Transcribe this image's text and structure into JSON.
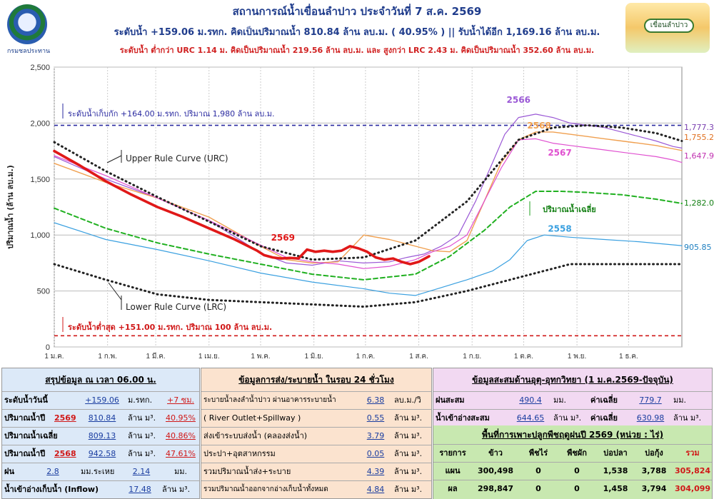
{
  "header": {
    "title": "สถานการณ์น้ำเขื่อนลำปาว ประจำวันที่ 7 ส.ค. 2569",
    "line2": "ระดับน้ำ +159.06 ม.รทก. คิดเป็นปริมาณน้ำ 810.84 ล้าน ลบ.ม. ( 40.95% ) || รับน้ำได้อีก 1,169.16 ล้าน ลบ.ม.",
    "line3": "ระดับน้ำ ต่ำกว่า URC 1.14 ม. คิดเป็นปริมาณน้ำ 219.56 ล้าน ลบ.ม. และ สูงกว่า LRC 2.43 ม. คิดเป็นปริมาณน้ำ 352.60 ล้าน ลบ.ม.",
    "logo_left_text": "กรมชลประทาน",
    "logo_right_text": "เขื่อนลำปาว"
  },
  "colors": {
    "y2569": "#e01818",
    "y2566": "#9b59d6",
    "y2568": "#f0a050",
    "y2567": "#e050d0",
    "y2558": "#3aa0e0",
    "avg": "#20b020",
    "rule": "#222222",
    "max": "#2a2aa0",
    "min": "#d01818"
  },
  "chart_data": {
    "type": "line",
    "ylabel": "ปริมาณน้ำ (ล้าน ลบ.ม.)",
    "ylim": [
      0,
      2500
    ],
    "yticks": [
      "0",
      "500",
      "1,000",
      "1,500",
      "2,000",
      "2,500"
    ],
    "ytick_values": [
      0,
      500,
      1000,
      1500,
      2000,
      2500
    ],
    "xtick_labels": [
      "1 ม.ค.",
      "1 ก.พ.",
      "1 มี.ค.",
      "1 เม.ย.",
      "1 พ.ค.",
      "1 มิ.ย.",
      "1 ก.ค.",
      "1 ส.ค.",
      "1 ก.ย.",
      "1 ต.ค.",
      "1 พ.ย.",
      "1 ธ.ค."
    ],
    "xtick_days": [
      0,
      31,
      59,
      90,
      120,
      151,
      181,
      212,
      243,
      273,
      304,
      334
    ],
    "xlim": [
      0,
      365
    ],
    "grid": true,
    "annotations": {
      "max_label": "ระดับน้ำเก็บกัก  +164.00 ม.รทก. ปริมาณ 1,980 ล้าน ลบ.ม.",
      "min_label": "ระดับน้ำต่ำสุด  +151.00  ม.รทก. ปริมาณ 100 ล้าน ลบ.ม.",
      "urc_label": "Upper Rule Curve (URC)",
      "lrc_label": "Lower Rule Curve (LRC)",
      "avg_label": "ปริมาณน้ำเฉลี่ย",
      "end_2566": "1,777.39",
      "end_2568": "1,755.20",
      "end_2567": "1,647.93",
      "end_avg": "1,282.06",
      "end_2558": "905.85"
    },
    "series": [
      {
        "name": "2569",
        "color_key": "y2569",
        "x": [
          0,
          15,
          30,
          45,
          60,
          75,
          90,
          105,
          118,
          122,
          127,
          132,
          137,
          142,
          147,
          152,
          157,
          162,
          167,
          172,
          177,
          182,
          187,
          192,
          197,
          202,
          207,
          212,
          218
        ],
        "y": [
          1750,
          1620,
          1480,
          1360,
          1250,
          1160,
          1060,
          960,
          860,
          820,
          800,
          790,
          795,
          790,
          870,
          850,
          860,
          850,
          860,
          900,
          880,
          850,
          800,
          780,
          790,
          760,
          740,
          760,
          810
        ]
      },
      {
        "name": "2566",
        "color_key": "y2566",
        "x": [
          0,
          30,
          60,
          90,
          120,
          135,
          150,
          165,
          180,
          195,
          205,
          215,
          225,
          235,
          245,
          255,
          262,
          270,
          280,
          290,
          300,
          310,
          320,
          330,
          340,
          350,
          360,
          365
        ],
        "y": [
          1700,
          1500,
          1330,
          1130,
          840,
          750,
          730,
          770,
          750,
          760,
          800,
          830,
          900,
          1000,
          1300,
          1650,
          1900,
          2050,
          2080,
          2050,
          2000,
          1980,
          1960,
          1920,
          1880,
          1840,
          1790,
          1777
        ]
      },
      {
        "name": "2568",
        "color_key": "y2568",
        "x": [
          0,
          30,
          60,
          90,
          120,
          135,
          150,
          165,
          180,
          195,
          205,
          215,
          220,
          230,
          240,
          250,
          260,
          270,
          280,
          290,
          300,
          310,
          320,
          330,
          340,
          350,
          360,
          365
        ],
        "y": [
          1640,
          1470,
          1330,
          1160,
          900,
          780,
          750,
          760,
          1000,
          960,
          920,
          880,
          860,
          850,
          950,
          1300,
          1650,
          1850,
          1920,
          1920,
          1900,
          1880,
          1860,
          1840,
          1820,
          1800,
          1770,
          1755
        ]
      },
      {
        "name": "2567",
        "color_key": "y2567",
        "x": [
          0,
          30,
          60,
          90,
          120,
          135,
          150,
          165,
          180,
          195,
          210,
          220,
          230,
          240,
          250,
          260,
          270,
          280,
          290,
          300,
          310,
          320,
          330,
          340,
          350,
          360,
          365
        ],
        "y": [
          1710,
          1530,
          1330,
          1130,
          910,
          800,
          760,
          740,
          700,
          720,
          780,
          850,
          900,
          1000,
          1300,
          1600,
          1850,
          1860,
          1820,
          1800,
          1780,
          1760,
          1740,
          1720,
          1700,
          1670,
          1648
        ]
      },
      {
        "name": "2558",
        "color_key": "y2558",
        "x": [
          0,
          30,
          60,
          90,
          120,
          150,
          180,
          195,
          210,
          225,
          240,
          255,
          265,
          275,
          285,
          300,
          320,
          340,
          365
        ],
        "y": [
          1110,
          960,
          870,
          770,
          660,
          580,
          520,
          480,
          460,
          530,
          600,
          680,
          780,
          950,
          1000,
          980,
          960,
          940,
          905
        ]
      },
      {
        "name": "ปริมาณน้ำเฉลี่ย",
        "color_key": "avg",
        "x": [
          0,
          30,
          60,
          90,
          120,
          150,
          180,
          210,
          230,
          250,
          265,
          280,
          295,
          310,
          330,
          350,
          365
        ],
        "y": [
          1240,
          1060,
          930,
          830,
          740,
          650,
          600,
          650,
          810,
          1040,
          1250,
          1390,
          1390,
          1380,
          1360,
          1320,
          1282
        ]
      },
      {
        "name": "Upper Rule Curve (URC)",
        "color_key": "rule",
        "x": [
          0,
          30,
          60,
          90,
          120,
          150,
          180,
          210,
          240,
          270,
          290,
          310,
          330,
          350,
          365
        ],
        "y": [
          1830,
          1570,
          1340,
          1120,
          900,
          780,
          800,
          950,
          1300,
          1850,
          1960,
          1980,
          1960,
          1910,
          1840
        ]
      },
      {
        "name": "Lower Rule Curve (LRC)",
        "color_key": "rule",
        "x": [
          0,
          30,
          60,
          90,
          120,
          150,
          180,
          210,
          240,
          270,
          300,
          330,
          365
        ],
        "y": [
          740,
          600,
          470,
          420,
          400,
          380,
          360,
          400,
          500,
          620,
          740,
          740,
          740
        ]
      }
    ],
    "series_labels": [
      {
        "text": "2569",
        "color_key": "y2569",
        "x": 133,
        "y": 950
      },
      {
        "text": "2566",
        "color_key": "y2566",
        "x": 270,
        "y": 2180
      },
      {
        "text": "2568",
        "color_key": "y2568",
        "x": 282,
        "y": 1950
      },
      {
        "text": "2567",
        "color_key": "y2567",
        "x": 294,
        "y": 1710
      },
      {
        "text": "2558",
        "color_key": "y2558",
        "x": 294,
        "y": 1030
      }
    ],
    "hlines": [
      {
        "value": 1980,
        "color_key": "max"
      },
      {
        "value": 100,
        "color_key": "min"
      }
    ]
  },
  "summary": {
    "title": "สรุปข้อมูล ณ เวลา 06.00 น.",
    "rows": [
      {
        "label": "ระดับน้ำวันนี้",
        "v1": "+159.06",
        "u1": "ม.รทก.",
        "v2": "+7 ซม.",
        "u2": ""
      },
      {
        "label": "ปริมาณน้ำปี",
        "year": "2569",
        "v1": "810.84",
        "u1": "ล้าน ม³.",
        "v2": "40.95%",
        "u2": ""
      },
      {
        "label": "ปริมาณน้ำเฉลี่ย",
        "v1": "809.13",
        "u1": "ล้าน ม³.",
        "v2": "40.86%",
        "u2": ""
      },
      {
        "label": "ปริมาณน้ำปี",
        "year": "2568",
        "v1": "942.58",
        "u1": "ล้าน ม³.",
        "v2": "47.61%",
        "u2": ""
      },
      {
        "label": "ฝน",
        "year": "2.8",
        "v1": "มม.ระเหย",
        "u1": "2.14",
        "v2": "มม.",
        "u2": ""
      },
      {
        "label": "น้ำเข้าอ่างเก็บน้ำ (Inflow)",
        "v1": "17.48",
        "u1": "ล้าน ม³.",
        "v2": "",
        "u2": ""
      }
    ]
  },
  "release": {
    "title": "ข้อมูลการส่ง/ระบายน้ำ ในรอบ 24 ชั่วโมง",
    "rows": [
      {
        "label": "ระบายน้ำลงลำน้ำปาว ผ่านอาคารระบายน้ำ",
        "value": "6.38",
        "unit": "ลบ.ม./วิ"
      },
      {
        "label": "( River Outlet+Spillway )",
        "value": "0.55",
        "unit": "ล้าน ม³."
      },
      {
        "label": "ส่งเข้าระบบส่งน้ำ (คลองส่งน้ำ)",
        "value": "3.79",
        "unit": "ล้าน ม³."
      },
      {
        "label": "ประปา+อุตสาหกรรม",
        "value": "0.05",
        "unit": "ล้าน ม³."
      },
      {
        "label": "รวมปริมาณน้ำส่ง+ระบาย",
        "value": "4.39",
        "unit": "ล้าน ม³."
      },
      {
        "label": "รวมปริมาณน้ำออกจากอ่างเก็บน้ำทั้งหมด",
        "value": "4.84",
        "unit": "ล้าน ม³."
      }
    ]
  },
  "hydro": {
    "title": "ข้อมูลสะสมด้านอุตุ-อุทกวิทยา (1 ม.ค.2569-ปัจจุบัน)",
    "rows": [
      {
        "label": "ฝนสะสม",
        "value": "490.4",
        "unit": "มม.",
        "avg_label": "ค่าเฉลี่ย",
        "avg": "779.7",
        "avg_unit": "มม."
      },
      {
        "label": "น้ำเข้าอ่างสะสม",
        "value": "644.65",
        "unit": "ล้าน ม³.",
        "avg_label": "ค่าเฉลี่ย",
        "avg": "630.98",
        "avg_unit": "ล้าน ม³."
      }
    ],
    "crop": {
      "title": "พื้นที่การเพาะปลูกพืชฤดูฝนปี 2569 (หน่วย : ไร่)",
      "headers": [
        "รายการ",
        "ข้าว",
        "พืชไร่",
        "พืชผัก",
        "บ่อปลา",
        "บ่อกุ้ง",
        "รวม"
      ],
      "rows": [
        [
          "แผน",
          "300,498",
          "0",
          "0",
          "1,538",
          "3,788",
          "305,824"
        ],
        [
          "ผล",
          "298,847",
          "0",
          "0",
          "1,458",
          "3,794",
          "304,099"
        ]
      ]
    }
  }
}
